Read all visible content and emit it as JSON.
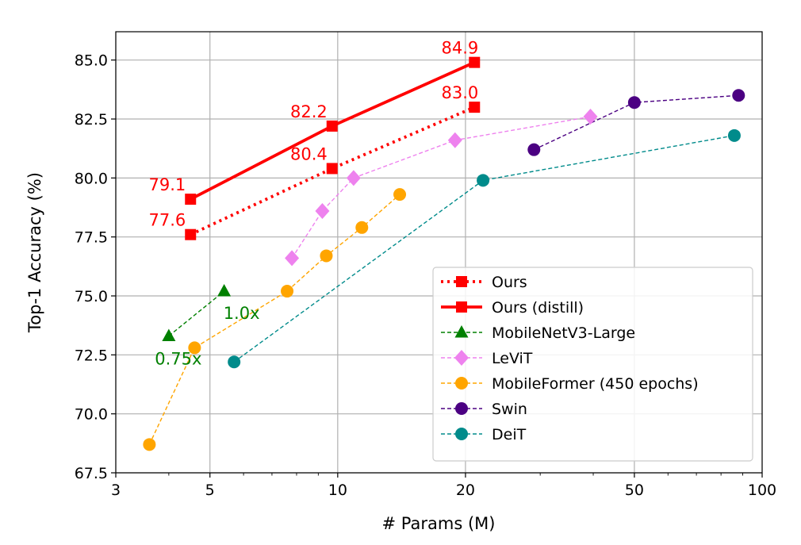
{
  "chart_data": {
    "type": "line",
    "xlabel": "# Params (M)",
    "ylabel": "Top-1 Accuracy (%)",
    "xscale": "log",
    "xlim": [
      3,
      100
    ],
    "ylim": [
      67.5,
      86.2
    ],
    "xticks": [
      3,
      5,
      10,
      20,
      50,
      100
    ],
    "xtick_labels": [
      "3",
      "5",
      "10",
      "20",
      "50",
      "100"
    ],
    "yticks": [
      67.5,
      70.0,
      72.5,
      75.0,
      77.5,
      80.0,
      82.5,
      85.0
    ],
    "ytick_labels": [
      "67.5",
      "70.0",
      "72.5",
      "75.0",
      "77.5",
      "80.0",
      "82.5",
      "85.0"
    ],
    "grid": true,
    "legend_position": "lower-right",
    "series": [
      {
        "name": "Ours",
        "color": "#ff0000",
        "line_style": "dotted",
        "marker": "square",
        "x": [
          4.5,
          9.7,
          21.0
        ],
        "y": [
          77.6,
          80.4,
          83.0
        ],
        "labels": [
          "77.6",
          "80.4",
          "83.0"
        ]
      },
      {
        "name": "Ours (distill)",
        "color": "#ff0000",
        "line_style": "solid",
        "marker": "square",
        "x": [
          4.5,
          9.7,
          21.0
        ],
        "y": [
          79.1,
          82.2,
          84.9
        ],
        "labels": [
          "79.1",
          "82.2",
          "84.9"
        ]
      },
      {
        "name": "MobileNetV3-Large",
        "color": "#008000",
        "line_style": "dashed",
        "marker": "triangle",
        "x": [
          4.0,
          5.4
        ],
        "y": [
          73.3,
          75.2
        ],
        "labels": [
          "0.75x",
          "1.0x"
        ]
      },
      {
        "name": "LeViT",
        "color": "#ee82ee",
        "line_style": "dashed",
        "marker": "diamond",
        "x": [
          7.8,
          9.2,
          10.9,
          18.9,
          39.4
        ],
        "y": [
          76.6,
          78.6,
          80.0,
          81.6,
          82.6
        ]
      },
      {
        "name": "MobileFormer (450 epochs)",
        "color": "#ffa500",
        "line_style": "dashed",
        "marker": "circle",
        "x": [
          3.6,
          4.6,
          7.6,
          9.4,
          11.4,
          14.0
        ],
        "y": [
          68.7,
          72.8,
          75.2,
          76.7,
          77.9,
          79.3
        ]
      },
      {
        "name": "Swin",
        "color": "#4b0082",
        "line_style": "dashed",
        "marker": "circle",
        "x": [
          29,
          50,
          88
        ],
        "y": [
          81.2,
          83.2,
          83.5
        ]
      },
      {
        "name": "DeiT",
        "color": "#008b8b",
        "line_style": "dashed",
        "marker": "circle",
        "x": [
          5.7,
          22,
          86
        ],
        "y": [
          72.2,
          79.9,
          81.8
        ]
      }
    ]
  }
}
